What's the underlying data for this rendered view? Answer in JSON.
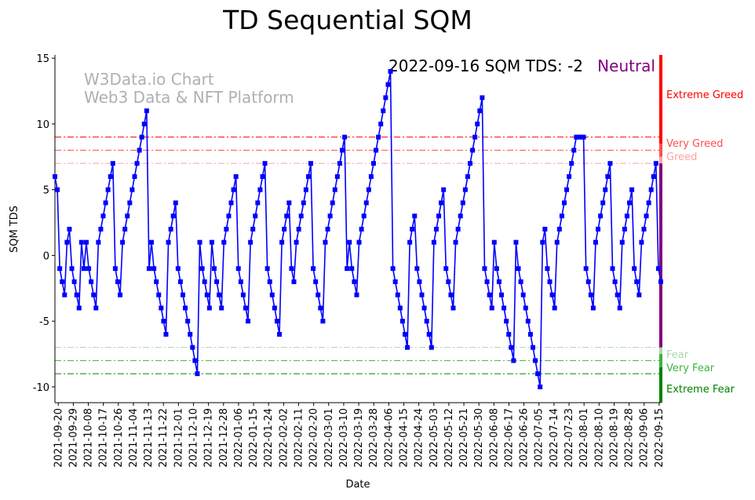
{
  "chart_data": {
    "type": "line",
    "title": "TD Sequential SQM",
    "xlabel": "Date",
    "ylabel": "SQM TDS",
    "ylim": [
      -11.2,
      15.25
    ],
    "yticks": [
      15,
      10,
      5,
      0,
      -5,
      -10
    ],
    "start_date": "2021-09-18",
    "end_date": "2022-09-16",
    "xticks": [
      "2021-09-20",
      "2021-09-29",
      "2021-10-08",
      "2021-10-17",
      "2021-10-26",
      "2021-11-04",
      "2021-11-13",
      "2021-11-22",
      "2021-12-01",
      "2021-12-10",
      "2021-12-19",
      "2021-12-28",
      "2022-01-06",
      "2022-01-15",
      "2022-01-24",
      "2022-02-02",
      "2022-02-11",
      "2022-02-20",
      "2022-03-01",
      "2022-03-10",
      "2022-03-19",
      "2022-03-28",
      "2022-04-06",
      "2022-04-15",
      "2022-04-24",
      "2022-05-03",
      "2022-05-12",
      "2022-05-21",
      "2022-05-30",
      "2022-06-08",
      "2022-06-17",
      "2022-06-26",
      "2022-07-05",
      "2022-07-14",
      "2022-07-23",
      "2022-08-01",
      "2022-08-10",
      "2022-08-19",
      "2022-08-28",
      "2022-09-06",
      "2022-09-15"
    ],
    "series": [
      {
        "name": "SQM TDS",
        "color": "#0000ff",
        "values": [
          6,
          5,
          -1,
          -2,
          -3,
          1,
          2,
          -1,
          -2,
          -3,
          -4,
          1,
          -1,
          1,
          -1,
          -2,
          -3,
          -4,
          1,
          2,
          3,
          4,
          5,
          6,
          7,
          -1,
          -2,
          -3,
          1,
          2,
          3,
          4,
          5,
          6,
          7,
          8,
          9,
          10,
          11,
          -1,
          1,
          -1,
          -2,
          -3,
          -4,
          -5,
          -6,
          1,
          2,
          3,
          4,
          -1,
          -2,
          -3,
          -4,
          -5,
          -6,
          -7,
          -8,
          -9,
          1,
          -1,
          -2,
          -3,
          -4,
          1,
          -1,
          -2,
          -3,
          -4,
          1,
          2,
          3,
          4,
          5,
          6,
          -1,
          -2,
          -3,
          -4,
          -5,
          1,
          2,
          3,
          4,
          5,
          6,
          7,
          -1,
          -2,
          -3,
          -4,
          -5,
          -6,
          1,
          2,
          3,
          4,
          -1,
          -2,
          1,
          2,
          3,
          4,
          5,
          6,
          7,
          -1,
          -2,
          -3,
          -4,
          -5,
          1,
          2,
          3,
          4,
          5,
          6,
          7,
          8,
          9,
          -1,
          1,
          -1,
          -2,
          -3,
          1,
          2,
          3,
          4,
          5,
          6,
          7,
          8,
          9,
          10,
          11,
          12,
          13,
          14,
          -1,
          -2,
          -3,
          -4,
          -5,
          -6,
          -7,
          1,
          2,
          3,
          -1,
          -2,
          -3,
          -4,
          -5,
          -6,
          -7,
          1,
          2,
          3,
          4,
          5,
          -1,
          -2,
          -3,
          -4,
          1,
          2,
          3,
          4,
          5,
          6,
          7,
          8,
          9,
          10,
          11,
          12,
          -1,
          -2,
          -3,
          -4,
          1,
          -1,
          -2,
          -3,
          -4,
          -5,
          -6,
          -7,
          -8,
          1,
          -1,
          -2,
          -3,
          -4,
          -5,
          -6,
          -7,
          -8,
          -9,
          -10,
          1,
          2,
          -1,
          -2,
          -3,
          -4,
          1,
          2,
          3,
          4,
          5,
          6,
          7,
          8,
          9,
          9,
          9,
          9,
          -1,
          -2,
          -3,
          -4,
          1,
          2,
          3,
          4,
          5,
          6,
          7,
          -1,
          -2,
          -3,
          -4,
          1,
          2,
          3,
          4,
          5,
          -1,
          -2,
          -3,
          1,
          2,
          3,
          4,
          5,
          6,
          7,
          -1,
          -2
        ]
      }
    ],
    "thresholds": [
      {
        "value": 9,
        "label": "Extreme Greed",
        "color": "#ff0000"
      },
      {
        "value": 8,
        "label": "Very Greed",
        "color": "#ff4d4d"
      },
      {
        "value": 7,
        "label": "Greed",
        "color": "#ffa0a0"
      },
      {
        "value": -7,
        "label": "Fear",
        "color": "#a8d8a8"
      },
      {
        "value": -8,
        "label": "Very Fear",
        "color": "#3cb43c"
      },
      {
        "value": -9,
        "label": "Extreme Fear",
        "color": "#008000"
      }
    ],
    "neutral_color": "#800080",
    "annotation": {
      "text": "2022-09-16 SQM TDS: -2",
      "status": "Neutral",
      "status_color": "#800080"
    },
    "watermark": [
      "W3Data.io Chart",
      "Web3 Data & NFT Platform"
    ],
    "grid": false,
    "legend": "none"
  }
}
